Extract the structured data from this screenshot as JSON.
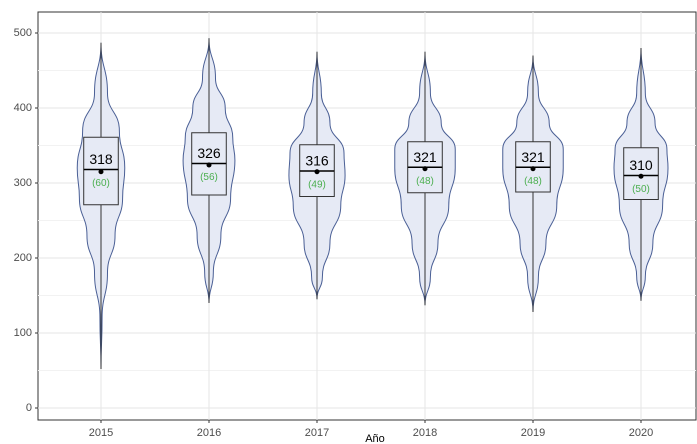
{
  "chart_data": {
    "type": "violin-box",
    "x_label": "Año",
    "categories": [
      "2015",
      "2016",
      "2017",
      "2018",
      "2019",
      "2020"
    ],
    "median": [
      318,
      326,
      316,
      321,
      321,
      310
    ],
    "q1": [
      271,
      284,
      282,
      287,
      288,
      278
    ],
    "q3": [
      361,
      367,
      351,
      355,
      355,
      347
    ],
    "mean": [
      315,
      324,
      315,
      319,
      319,
      309
    ],
    "whisker_low": [
      52,
      140,
      145,
      137,
      128,
      143
    ],
    "whisker_high": [
      487,
      493,
      475,
      475,
      470,
      480
    ],
    "secondary_labels": [
      "(60)",
      "(56)",
      "(49)",
      "(48)",
      "(48)",
      "(50)"
    ],
    "violins": [
      {
        "y": [
          52,
          120,
          180,
          230,
          280,
          320,
          370,
          420,
          487
        ],
        "width": [
          0,
          0.01,
          0.06,
          0.13,
          0.2,
          0.22,
          0.17,
          0.06,
          0
        ]
      },
      {
        "y": [
          140,
          180,
          230,
          280,
          330,
          360,
          400,
          440,
          493
        ],
        "width": [
          0,
          0.04,
          0.11,
          0.2,
          0.24,
          0.22,
          0.15,
          0.06,
          0
        ]
      },
      {
        "y": [
          145,
          175,
          220,
          270,
          310,
          340,
          380,
          420,
          475
        ],
        "width": [
          0,
          0.05,
          0.12,
          0.22,
          0.26,
          0.25,
          0.12,
          0.04,
          0
        ]
      },
      {
        "y": [
          137,
          175,
          220,
          270,
          320,
          345,
          380,
          420,
          475
        ],
        "width": [
          0,
          0.05,
          0.12,
          0.22,
          0.28,
          0.28,
          0.15,
          0.05,
          0
        ]
      },
      {
        "y": [
          128,
          175,
          220,
          270,
          320,
          345,
          380,
          420,
          470
        ],
        "width": [
          0,
          0.05,
          0.12,
          0.22,
          0.28,
          0.28,
          0.15,
          0.05,
          0
        ]
      },
      {
        "y": [
          143,
          175,
          220,
          270,
          320,
          345,
          380,
          420,
          480
        ],
        "width": [
          0,
          0.04,
          0.11,
          0.2,
          0.25,
          0.24,
          0.13,
          0.04,
          0
        ]
      }
    ],
    "violin_fill": "#e6eaf5",
    "violin_stroke": "#4a5f95",
    "label_color": "#4caf50",
    "ylim": [
      -16,
      528
    ],
    "yticks": [
      0,
      100,
      200,
      300,
      400,
      500
    ],
    "minor_yticks": [
      50,
      150,
      250,
      350,
      450
    ],
    "grid": true
  }
}
